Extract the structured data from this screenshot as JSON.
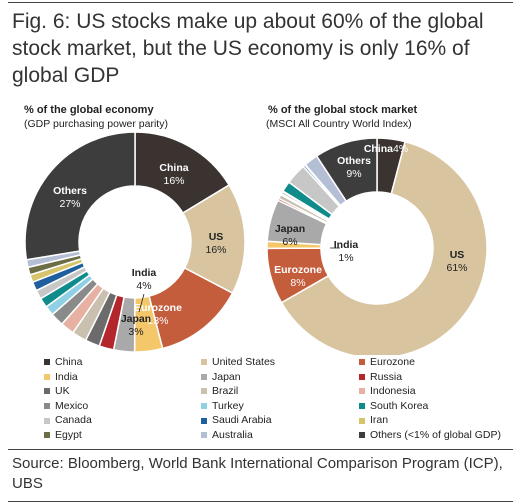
{
  "figure": {
    "title": "Fig. 6: US stocks make up about 60% of the global stock market, but the US economy is only 16% of global GDP",
    "source": "Source: Bloomberg, World Bank International Comparison Program (ICP), UBS"
  },
  "colors": {
    "China": "#3b3330",
    "United States": "#d8c59f",
    "Eurozone": "#c35d3c",
    "India": "#f4c76a",
    "Japan": "#a9a9a9",
    "Russia": "#b3262b",
    "UK": "#6b6b6b",
    "Brazil": "#c9c0af",
    "Indonesia": "#e6b1a3",
    "Mexico": "#8a8a8a",
    "Turkey": "#8fd0e4",
    "South Korea": "#0e8b8a",
    "Canada": "#c7c7c7",
    "Saudi Arabia": "#1f5f9e",
    "Iran": "#d6c46a",
    "Egypt": "#6d6d45",
    "Australia": "#b4bfd6",
    "Others": "#3d3d3d"
  },
  "chart_data": [
    {
      "type": "pie",
      "title": "% of the global economy",
      "subtitle": "(GDP purchasing power parity)",
      "slices": [
        {
          "name": "China",
          "value": 16,
          "label": "China",
          "value_label": "16%"
        },
        {
          "name": "United States",
          "value": 16,
          "label": "US",
          "value_label": "16%"
        },
        {
          "name": "Eurozone",
          "value": 13,
          "label": "Eurozone",
          "value_label": "13%"
        },
        {
          "name": "India",
          "value": 4,
          "label": "India",
          "value_label": "4%"
        },
        {
          "name": "Japan",
          "value": 3,
          "label": "Japan",
          "value_label": "3%"
        },
        {
          "name": "Russia",
          "value": 2.1
        },
        {
          "name": "UK",
          "value": 2.1
        },
        {
          "name": "Brazil",
          "value": 2.1
        },
        {
          "name": "Indonesia",
          "value": 2
        },
        {
          "name": "Mexico",
          "value": 1.9
        },
        {
          "name": "Turkey",
          "value": 1.4
        },
        {
          "name": "South Korea",
          "value": 1.4
        },
        {
          "name": "Canada",
          "value": 1.3
        },
        {
          "name": "Saudi Arabia",
          "value": 1.3
        },
        {
          "name": "Iran",
          "value": 1.1
        },
        {
          "name": "Egypt",
          "value": 1.1
        },
        {
          "name": "Australia",
          "value": 1.1
        },
        {
          "name": "Others",
          "value": 27,
          "label": "Others",
          "value_label": "27%"
        }
      ]
    },
    {
      "type": "pie",
      "title": "% of the global stock market",
      "subtitle": "(MSCI All Country World Index)",
      "slices": [
        {
          "name": "China",
          "value": 4,
          "label": "China",
          "value_label": "4%"
        },
        {
          "name": "United States",
          "value": 61,
          "label": "US",
          "value_label": "61%"
        },
        {
          "name": "Eurozone",
          "value": 8,
          "label": "Eurozone",
          "value_label": "8%"
        },
        {
          "name": "India",
          "value": 1,
          "label": "India",
          "value_label": "1%"
        },
        {
          "name": "Japan",
          "value": 6,
          "label": "Japan",
          "value_label": "6%"
        },
        {
          "name": "Russia",
          "value": 0.3
        },
        {
          "name": "UK",
          "value": 0
        },
        {
          "name": "Brazil",
          "value": 0.6
        },
        {
          "name": "Indonesia",
          "value": 0.2
        },
        {
          "name": "Mexico",
          "value": 0.3
        },
        {
          "name": "Turkey",
          "value": 0.1
        },
        {
          "name": "South Korea",
          "value": 1.5
        },
        {
          "name": "Canada",
          "value": 3
        },
        {
          "name": "Saudi Arabia",
          "value": 0.3
        },
        {
          "name": "Iran",
          "value": 0
        },
        {
          "name": "Egypt",
          "value": 0.1
        },
        {
          "name": "Australia",
          "value": 2
        },
        {
          "name": "Others",
          "value": 9,
          "label": "Others",
          "value_label": "9%"
        }
      ]
    }
  ],
  "legend": [
    {
      "name": "China",
      "label": "China"
    },
    {
      "name": "United States",
      "label": "United States"
    },
    {
      "name": "Eurozone",
      "label": "Eurozone"
    },
    {
      "name": "India",
      "label": "India"
    },
    {
      "name": "Japan",
      "label": "Japan"
    },
    {
      "name": "Russia",
      "label": "Russia"
    },
    {
      "name": "UK",
      "label": "UK"
    },
    {
      "name": "Brazil",
      "label": "Brazil"
    },
    {
      "name": "Indonesia",
      "label": "Indonesia"
    },
    {
      "name": "Mexico",
      "label": "Mexico"
    },
    {
      "name": "Turkey",
      "label": "Turkey"
    },
    {
      "name": "South Korea",
      "label": "South Korea"
    },
    {
      "name": "Canada",
      "label": "Canada"
    },
    {
      "name": "Saudi Arabia",
      "label": "Saudi Arabia"
    },
    {
      "name": "Iran",
      "label": "Iran"
    },
    {
      "name": "Egypt",
      "label": "Egypt"
    },
    {
      "name": "Australia",
      "label": "Australia"
    },
    {
      "name": "Others",
      "label": "Others (<1% of global GDP)"
    }
  ]
}
